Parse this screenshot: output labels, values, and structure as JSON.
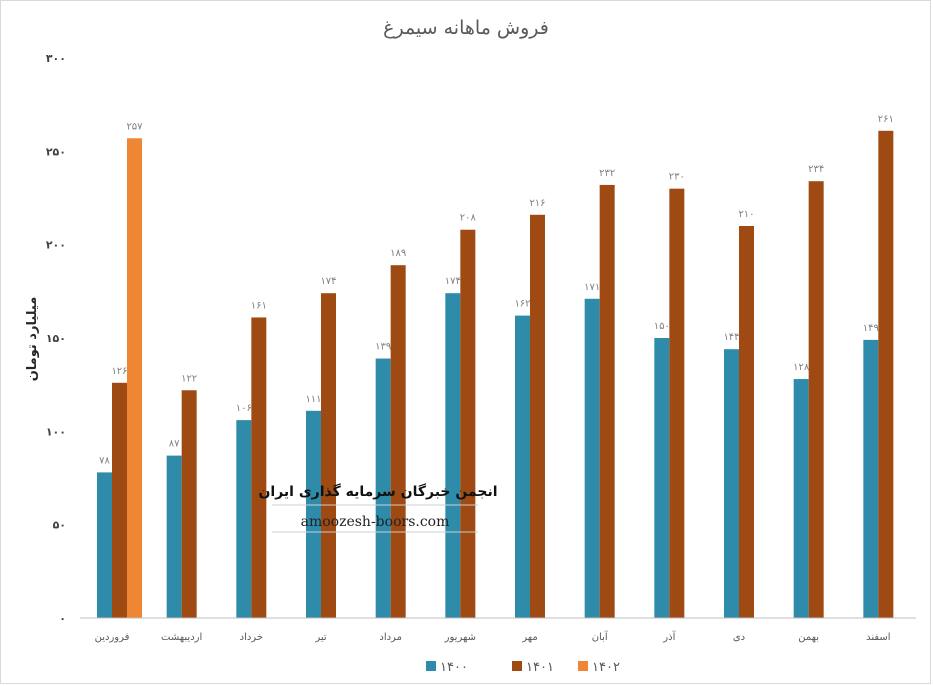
{
  "chart_data": {
    "type": "bar",
    "title": "فروش ماهانه سیمرغ",
    "ylabel": "میلیارد تومان",
    "xlabel": "",
    "ylim": [
      0,
      300
    ],
    "yticks": [
      "۰",
      "۵۰",
      "۱۰۰",
      "۱۵۰",
      "۲۰۰",
      "۲۵۰",
      "۳۰۰"
    ],
    "ytick_values": [
      0,
      50,
      100,
      150,
      200,
      250,
      300
    ],
    "categories": [
      "فروردین",
      "اردیبهشت",
      "خرداد",
      "تیر",
      "مرداد",
      "شهریور",
      "مهر",
      "آبان",
      "آذر",
      "دی",
      "بهمن",
      "اسفند"
    ],
    "series": [
      {
        "name": "۱۴۰۰",
        "color": "#2e8ba9",
        "values": [
          78,
          87,
          106,
          111,
          139,
          174,
          162,
          171,
          150,
          144,
          128,
          149
        ],
        "labels": [
          "۷۸",
          "۸۷",
          "۱۰۶",
          "۱۱۱",
          "۱۳۹",
          "۱۷۴",
          "۱۶۲",
          "۱۷۱",
          "۱۵۰",
          "۱۴۴",
          "۱۲۸",
          "۱۴۹"
        ]
      },
      {
        "name": "۱۴۰۱",
        "color": "#9e4a12",
        "values": [
          126,
          122,
          161,
          174,
          189,
          208,
          216,
          232,
          230,
          210,
          234,
          261
        ],
        "labels": [
          "۱۲۶",
          "۱۲۲",
          "۱۶۱",
          "۱۷۴",
          "۱۸۹",
          "۲۰۸",
          "۲۱۶",
          "۲۳۲",
          "۲۳۰",
          "۲۱۰",
          "۲۳۴",
          "۲۶۱"
        ]
      },
      {
        "name": "۱۴۰۲",
        "color": "#ef8634",
        "values": [
          257,
          null,
          null,
          null,
          null,
          null,
          null,
          null,
          null,
          null,
          null,
          null
        ],
        "labels": [
          "۲۵۷",
          "",
          "",
          "",
          "",
          "",
          "",
          "",
          "",
          "",
          "",
          ""
        ]
      }
    ],
    "grid": false,
    "legend_position": "bottom"
  },
  "watermark": {
    "title": "انجمن خبرگان سرمایه گذاری ایران",
    "url": "amoozesh-boors.com"
  }
}
